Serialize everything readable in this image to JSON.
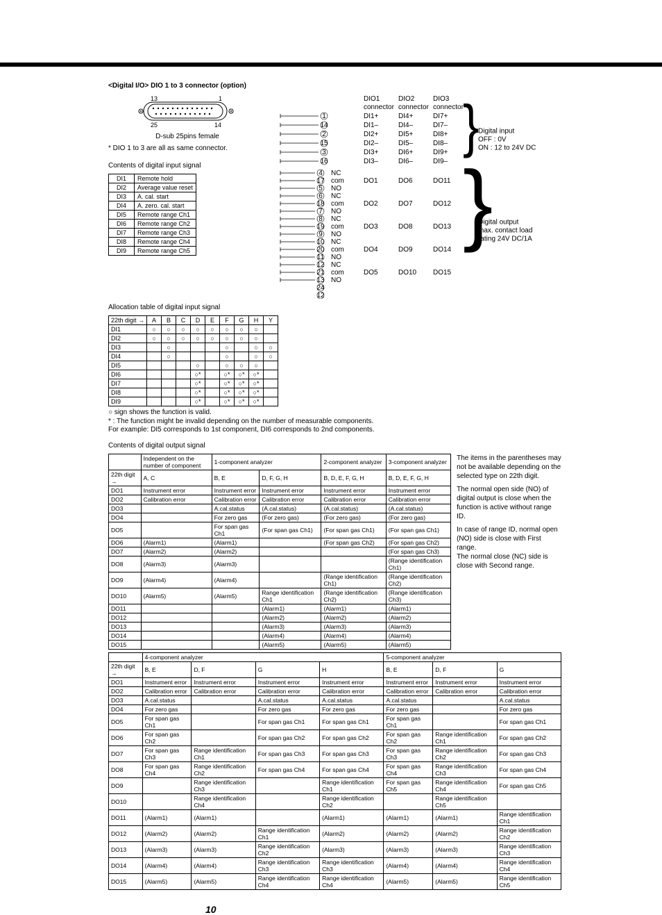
{
  "header": {
    "title": "<Digital I/O>  DIO 1 to 3 connector (option)"
  },
  "connector": {
    "label_13": "13",
    "label_1": "1",
    "label_25": "25",
    "label_14": "14",
    "caption": "D-sub 25pins female",
    "note": "* DIO 1 to 3 are all as same connector."
  },
  "di_section": {
    "title": "Contents of digital input signal"
  },
  "di_rows": [
    [
      "DI1",
      "Remote hold"
    ],
    [
      "DI2",
      "Average value reset"
    ],
    [
      "DI3",
      "A. cal. start"
    ],
    [
      "DI4",
      "A. zero. cal. start"
    ],
    [
      "DI5",
      "Remote range Ch1"
    ],
    [
      "DI6",
      "Remote range Ch2"
    ],
    [
      "DI7",
      "Remote range Ch3"
    ],
    [
      "DI8",
      "Remote range Ch4"
    ],
    [
      "DI9",
      "Remote range Ch5"
    ]
  ],
  "pin_col_hdr": [
    "DIO1",
    "DIO2",
    "DIO3"
  ],
  "pin_col_sub": "connector",
  "di_pins": [
    [
      "DI1+",
      "DI4+",
      "DI7+"
    ],
    [
      "DI1–",
      "DI4–",
      "DI7–"
    ],
    [
      "DI2+",
      "DI5+",
      "DI8+"
    ],
    [
      "DI2–",
      "DI5–",
      "DI8–"
    ],
    [
      "DI3+",
      "DI6+",
      "DI9+"
    ],
    [
      "DI3–",
      "DI6–",
      "DI9–"
    ]
  ],
  "di_side": {
    "l1": "Digital input",
    "l2": "OFF : 0V",
    "l3": "ON  : 12 to 24V DC"
  },
  "do_groups": [
    [
      "DO1",
      "DO6",
      "DO11"
    ],
    [
      "DO2",
      "DO7",
      "DO12"
    ],
    [
      "DO3",
      "DO8",
      "DO13"
    ],
    [
      "DO4",
      "DO9",
      "DO14"
    ],
    [
      "DO5",
      "DO10",
      "DO15"
    ]
  ],
  "do_side": {
    "l1": "Digital output",
    "l2": "max. contact load",
    "l3": "rating 24V DC/1A"
  },
  "contact": {
    "nc": "NC",
    "com": "com",
    "no": "NO"
  },
  "alloc": {
    "title": "Allocation table of digital input signal",
    "col0": "22th digit →",
    "cols": [
      "A",
      "B",
      "C",
      "D",
      "E",
      "F",
      "G",
      "H",
      "Y"
    ],
    "rows": [
      [
        "DI1",
        "○",
        "○",
        "○",
        "○",
        "○",
        "○",
        "○",
        "○",
        ""
      ],
      [
        "DI2",
        "○",
        "○",
        "○",
        "○",
        "○",
        "○",
        "○",
        "○",
        ""
      ],
      [
        "DI3",
        "",
        "○",
        "",
        "",
        "",
        "○",
        "",
        "○",
        "○"
      ],
      [
        "DI4",
        "",
        "○",
        "",
        "",
        "",
        "○",
        "",
        "○",
        "○"
      ],
      [
        "DI5",
        "",
        "",
        "",
        "○",
        "",
        "○",
        "○",
        "○",
        ""
      ],
      [
        "DI6",
        "",
        "",
        "",
        "○*",
        "",
        "○*",
        "○*",
        "○*",
        ""
      ],
      [
        "DI7",
        "",
        "",
        "",
        "○*",
        "",
        "○*",
        "○*",
        "○*",
        ""
      ],
      [
        "DI8",
        "",
        "",
        "",
        "○*",
        "",
        "○*",
        "○*",
        "○*",
        ""
      ],
      [
        "DI9",
        "",
        "",
        "",
        "○*",
        "",
        "○*",
        "○*",
        "○*",
        ""
      ]
    ]
  },
  "alloc_legend": {
    "l1": "○ sign shows the function is valid.",
    "l2": "*  : The function might be invalid depending on the number of measurable components.",
    "l3": "For example: DI5 corresponds to 1st component, DI6 corresponds to 2nd components."
  },
  "do_section": {
    "title": "Contents of digital output signal"
  },
  "do_t1": {
    "top": [
      "Independent on the number of component",
      "1-component analyzer",
      "",
      "2-component analyzer",
      "3-component analyzer"
    ],
    "digit_label": "22th digit →",
    "digits": [
      "A, C",
      "B, E",
      "D, F, G, H",
      "B, D, E, F, G, H",
      "B, D, E, F, G, H"
    ],
    "rows": [
      [
        "DO1",
        "Instrument error",
        "Instrument error",
        "Instrument error",
        "Instrument error",
        "Instrument error"
      ],
      [
        "DO2",
        "Calibration error",
        "Calibration error",
        "Calibration error",
        "Calibration error",
        "Calibration error"
      ],
      [
        "DO3",
        "",
        "A.cal.status",
        "(A.cal.status)",
        "(A.cal.status)",
        "(A.cal.status)"
      ],
      [
        "DO4",
        "",
        "For zero gas",
        "(For zero gas)",
        "(For zero gas)",
        "(For zero gas)"
      ],
      [
        "DO5",
        "",
        "For span gas Ch1",
        "(For span gas Ch1)",
        "(For span gas Ch1)",
        "(For span gas Ch1)"
      ],
      [
        "DO6",
        "(Alarm1)",
        "(Alarm1)",
        "",
        "(For span gas Ch2)",
        "(For span gas Ch2)"
      ],
      [
        "DO7",
        "(Alarm2)",
        "(Alarm2)",
        "",
        "",
        "(For span gas Ch3)"
      ],
      [
        "DO8",
        "(Alarm3)",
        "(Alarm3)",
        "",
        "",
        "(Range identification Ch1)"
      ],
      [
        "DO9",
        "(Alarm4)",
        "(Alarm4)",
        "",
        "(Range identification Ch1)",
        "(Range identification Ch2)"
      ],
      [
        "DO10",
        "(Alarm5)",
        "(Alarm5)",
        "Range identification Ch1",
        "(Range identification Ch2)",
        "(Range identification Ch3)"
      ],
      [
        "DO11",
        "",
        "",
        "(Alarm1)",
        "(Alarm1)",
        "(Alarm1)"
      ],
      [
        "DO12",
        "",
        "",
        "(Alarm2)",
        "(Alarm2)",
        "(Alarm2)"
      ],
      [
        "DO13",
        "",
        "",
        "(Alarm3)",
        "(Alarm3)",
        "(Alarm3)"
      ],
      [
        "DO14",
        "",
        "",
        "(Alarm4)",
        "(Alarm4)",
        "(Alarm4)"
      ],
      [
        "DO15",
        "",
        "",
        "(Alarm5)",
        "(Alarm5)",
        "(Alarm5)"
      ]
    ]
  },
  "do_notes": {
    "p1": "The items in the parentheses may not be available depending on the selected type on 22th digit.",
    "p2": "The normal open side (NO) of digital output is close when the function is active without range ID.",
    "p3": "In case of range ID, normal open (NO) side is close with First range.",
    "p4": "The normal close (NC) side is close with Second range."
  },
  "do_t2": {
    "top": [
      "4-component analyzer",
      "",
      "",
      "",
      "5-component analyzer",
      "",
      ""
    ],
    "digit_label": "22th digit →",
    "digits": [
      "B, E",
      "D, F",
      "G",
      "H",
      "B, E",
      "D, F",
      "G"
    ],
    "rows": [
      [
        "DO1",
        "Instrument error",
        "Instrument error",
        "Instrument error",
        "Instrument error",
        "Instrument error",
        "Instrument error",
        "Instrument error"
      ],
      [
        "DO2",
        "Calibration error",
        "Calibration error",
        "Calibration error",
        "Calibration error",
        "Calibration error",
        "Calibration error",
        "Calibration error"
      ],
      [
        "DO3",
        "A.cal.status",
        "",
        "A.cal.status",
        "A.cal.status",
        "A.cal.status",
        "",
        "A.cal.status"
      ],
      [
        "DO4",
        "For zero gas",
        "",
        "For zero gas",
        "For zero gas",
        "For zero gas",
        "",
        "For zero gas"
      ],
      [
        "DO5",
        "For span gas Ch1",
        "",
        "For span gas Ch1",
        "For span gas Ch1",
        "For span gas Ch1",
        "",
        "For span gas Ch1"
      ],
      [
        "DO6",
        "For span gas Ch2",
        "",
        "For span gas Ch2",
        "For span gas Ch2",
        "For span gas Ch2",
        "Range identification Ch1",
        "For span gas Ch2"
      ],
      [
        "DO7",
        "For span gas Ch3",
        "Range identification Ch1",
        "For span gas Ch3",
        "For span gas Ch3",
        "For span gas Ch3",
        "Range identification Ch2",
        "For span gas Ch3"
      ],
      [
        "DO8",
        "For span gas Ch4",
        "Range identification Ch2",
        "For span gas Ch4",
        "For span gas Ch4",
        "For span gas Ch4",
        "Range identification Ch3",
        "For span gas Ch4"
      ],
      [
        "DO9",
        "",
        "Range identification Ch3",
        "",
        "Range identification Ch1",
        "For span gas Ch5",
        "Range identification Ch4",
        "For span gas Ch5"
      ],
      [
        "DO10",
        "",
        "Range identification Ch4",
        "",
        "Range identification Ch2",
        "",
        "Range identification Ch5",
        ""
      ],
      [
        "DO11",
        "(Alarm1)",
        "(Alarm1)",
        "",
        "(Alarm1)",
        "(Alarm1)",
        "(Alarm1)",
        "Range identification Ch1"
      ],
      [
        "DO12",
        "(Alarm2)",
        "(Alarm2)",
        "Range identification Ch1",
        "(Alarm2)",
        "(Alarm2)",
        "(Alarm2)",
        "Range identification Ch2"
      ],
      [
        "DO13",
        "(Alarm3)",
        "(Alarm3)",
        "Range identification Ch2",
        "(Alarm3)",
        "(Alarm3)",
        "(Alarm3)",
        "Range identification Ch3"
      ],
      [
        "DO14",
        "(Alarm4)",
        "(Alarm4)",
        "Range identification Ch3",
        "Range identification Ch3",
        "(Alarm4)",
        "(Alarm4)",
        "Range identification Ch4"
      ],
      [
        "DO15",
        "(Alarm5)",
        "(Alarm5)",
        "Range identification Ch4",
        "Range identification Ch4",
        "(Alarm5)",
        "(Alarm5)",
        "Range identification Ch5"
      ]
    ]
  },
  "page_no": "10"
}
